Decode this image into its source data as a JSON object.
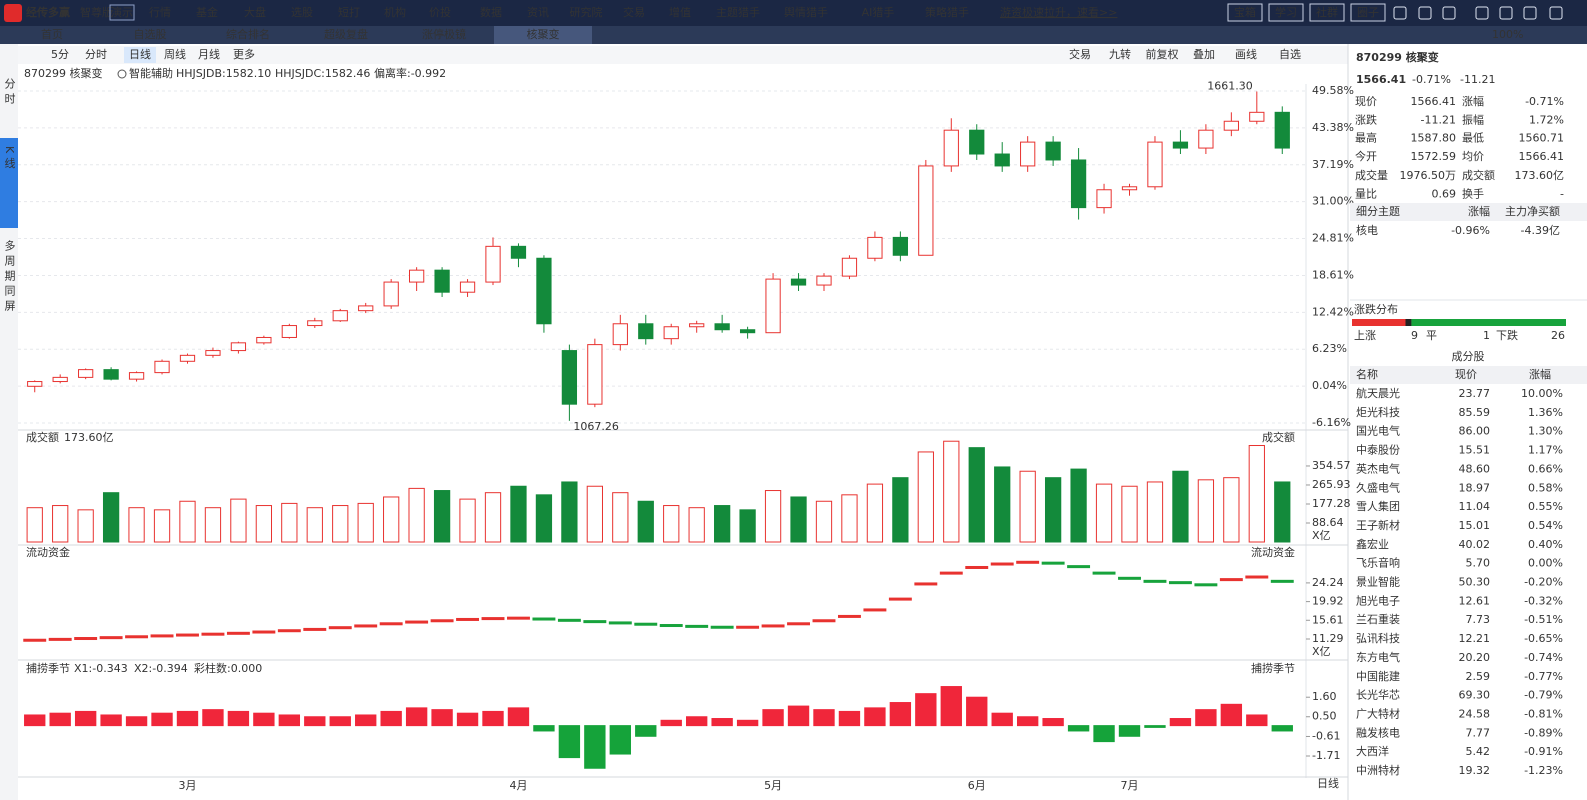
{
  "nav": {
    "logo": "经传多赢",
    "edition": "智尊版",
    "demo": "演示",
    "menu": [
      "行情",
      "基金",
      "大盘",
      "选股",
      "短打",
      "机构",
      "价投",
      "数据",
      "资讯",
      "研究院",
      "交易",
      "增值",
      "主题猎手",
      "舆情猎手",
      "AI猎手",
      "策略猎手"
    ],
    "promo": "游资极速拉升，速看>>",
    "buttons": [
      "宝箱",
      "学习",
      "社群",
      "圈子"
    ]
  },
  "tabs": {
    "items": [
      "首页",
      "自选股",
      "综合排名",
      "超级复盘",
      "涨停极镜",
      "核聚变"
    ],
    "zoom": "100%"
  },
  "side_tabs": [
    "分时",
    "K线",
    "多周期同屏"
  ],
  "toolbar": {
    "left": [
      "5分",
      "分时",
      "日线",
      "周线",
      "月线",
      "更多"
    ],
    "right": [
      "交易",
      "九转",
      "前复权",
      "叠加",
      "画线",
      "自选"
    ]
  },
  "period_label": "日线",
  "chart_data": [
    {
      "type": "candlestick",
      "title": "870299 核聚变",
      "assist": "智能辅助",
      "indicators": [
        "HHJSJDB:1582.10",
        "HHJSJDC:1582.46",
        "偏离率:-0.992"
      ],
      "high_label": "1661.30",
      "low_label": "1067.26",
      "categories": [
        null,
        null,
        null,
        null,
        null,
        null,
        "3月",
        null,
        null,
        null,
        null,
        null,
        null,
        null,
        null,
        null,
        null,
        null,
        null,
        "4月",
        null,
        null,
        null,
        null,
        null,
        null,
        null,
        null,
        null,
        "5月",
        null,
        null,
        null,
        null,
        null,
        null,
        null,
        "6月",
        null,
        null,
        null,
        null,
        null,
        "7月",
        null,
        null,
        null,
        null,
        null,
        null
      ],
      "ohlc": [
        [
          0,
          1,
          -1,
          0.8
        ],
        [
          0.8,
          2,
          0.5,
          1.5
        ],
        [
          1.5,
          3,
          1.2,
          2.8
        ],
        [
          2.8,
          3.2,
          1,
          1.2
        ],
        [
          1.2,
          2.5,
          0.8,
          2.3
        ],
        [
          2.3,
          4.5,
          2,
          4.2
        ],
        [
          4.2,
          5.5,
          3.8,
          5.2
        ],
        [
          5.2,
          6.5,
          4.8,
          6
        ],
        [
          6,
          7.5,
          5.5,
          7.3
        ],
        [
          7.3,
          8.5,
          7,
          8.2
        ],
        [
          8.2,
          10.5,
          8,
          10.2
        ],
        [
          10.2,
          11.5,
          9.8,
          11
        ],
        [
          11,
          13,
          10.8,
          12.7
        ],
        [
          12.7,
          14,
          12.3,
          13.5
        ],
        [
          13.5,
          18,
          13,
          17.5
        ],
        [
          17.5,
          20,
          16,
          19.5
        ],
        [
          19.5,
          20,
          15,
          15.8
        ],
        [
          15.8,
          18,
          15,
          17.5
        ],
        [
          17.5,
          25,
          17,
          23.5
        ],
        [
          23.5,
          24,
          20,
          21.5
        ],
        [
          21.5,
          22,
          9,
          10.5
        ],
        [
          6,
          7,
          -5.8,
          -3
        ],
        [
          -3,
          8,
          -3.5,
          7
        ],
        [
          7,
          12,
          6,
          10.5
        ],
        [
          10.5,
          12,
          7,
          8
        ],
        [
          8,
          10.5,
          7,
          10
        ],
        [
          10,
          11,
          9,
          10.5
        ],
        [
          10.5,
          12,
          9,
          9.5
        ],
        [
          9.5,
          10,
          8,
          9
        ],
        [
          9,
          19,
          9,
          18
        ],
        [
          18,
          19,
          16,
          17
        ],
        [
          17,
          19,
          16,
          18.5
        ],
        [
          18.5,
          22,
          18,
          21.5
        ],
        [
          21.5,
          26,
          21,
          25
        ],
        [
          25,
          26,
          21,
          22
        ],
        [
          22,
          38,
          22,
          37
        ],
        [
          37,
          45,
          36,
          43
        ],
        [
          43,
          44,
          38,
          39
        ],
        [
          39,
          41,
          36,
          37
        ],
        [
          37,
          42,
          36,
          41
        ],
        [
          41,
          42,
          37,
          38
        ],
        [
          38,
          40,
          28,
          30
        ],
        [
          30,
          34,
          29,
          33
        ],
        [
          33,
          34,
          32,
          33.5
        ],
        [
          33.5,
          42,
          33,
          41
        ],
        [
          41,
          43,
          39,
          40
        ],
        [
          40,
          44,
          39,
          43
        ],
        [
          43,
          46,
          42,
          44.5
        ],
        [
          44.5,
          49.5,
          44,
          46
        ],
        [
          46,
          47,
          39,
          40
        ]
      ],
      "ylim": [
        -6.16,
        49.58
      ],
      "yticks": [
        {
          "value": 49.58,
          "label": "49.58%"
        },
        {
          "value": 43.38,
          "label": "43.38%"
        },
        {
          "value": 37.19,
          "label": "37.19%"
        },
        {
          "value": 31.0,
          "label": "31.00%"
        },
        {
          "value": 24.81,
          "label": "24.81%"
        },
        {
          "value": 18.61,
          "label": "18.61%"
        },
        {
          "value": 12.42,
          "label": "12.42%"
        },
        {
          "value": 6.23,
          "label": "6.23%"
        },
        {
          "value": 0.04,
          "label": "0.04%"
        },
        {
          "value": -6.16,
          "label": "-6.16%"
        }
      ],
      "up_color": "#e8322f",
      "down_color": "#138a3b",
      "grid": true
    },
    {
      "type": "bar",
      "title": "成交额",
      "summary": "173.60亿",
      "right_title": "成交额",
      "unit": "X亿",
      "values": [
        160,
        170,
        150,
        230,
        160,
        150,
        190,
        160,
        200,
        170,
        180,
        160,
        170,
        180,
        210,
        250,
        240,
        200,
        230,
        260,
        220,
        280,
        260,
        230,
        190,
        170,
        160,
        170,
        150,
        240,
        210,
        190,
        220,
        270,
        300,
        420,
        470,
        440,
        350,
        330,
        300,
        340,
        270,
        260,
        280,
        330,
        290,
        300,
        450,
        280
      ],
      "ylim": [
        0,
        513
      ],
      "yticks": [
        354.57,
        265.93,
        177.28,
        88.64
      ]
    },
    {
      "type": "line",
      "title": "流动资金",
      "right_title": "流动资金",
      "unit": "X亿",
      "values": [
        11.0,
        11.2,
        11.4,
        11.6,
        11.8,
        12.0,
        12.2,
        12.4,
        12.6,
        12.9,
        13.2,
        13.5,
        13.9,
        14.3,
        14.8,
        15.2,
        15.5,
        15.8,
        16.0,
        16.1,
        15.9,
        15.6,
        15.3,
        15.0,
        14.7,
        14.4,
        14.2,
        14.0,
        14.0,
        14.3,
        14.8,
        15.5,
        16.5,
        18.0,
        20.5,
        24.0,
        26.5,
        27.8,
        28.6,
        29.0,
        28.8,
        28.0,
        26.5,
        25.3,
        24.6,
        24.3,
        23.8,
        25.0,
        25.6,
        24.6
      ],
      "ylim": [
        6.9,
        32.3
      ],
      "yticks": [
        24.24,
        19.92,
        15.61,
        11.29
      ]
    },
    {
      "type": "bar",
      "title": "捕捞季节",
      "indicators": [
        "X1:-0.343",
        "X2:-0.394",
        "彩柱数:0.000"
      ],
      "right_title": "捕捞季节",
      "values": [
        0.6,
        0.7,
        0.8,
        0.6,
        0.5,
        0.7,
        0.8,
        0.9,
        0.8,
        0.7,
        0.6,
        0.5,
        0.5,
        0.6,
        0.8,
        1.0,
        0.9,
        0.7,
        0.8,
        1.0,
        -0.3,
        -1.8,
        -2.4,
        -1.6,
        -0.6,
        0.3,
        0.5,
        0.4,
        0.3,
        0.9,
        1.1,
        0.9,
        0.8,
        1.0,
        1.3,
        1.8,
        2.2,
        1.6,
        0.7,
        0.5,
        0.4,
        -0.3,
        -0.9,
        -0.6,
        -0.1,
        0.4,
        0.9,
        1.2,
        0.6,
        -0.3
      ],
      "ylim": [
        -2.78,
        3.47
      ],
      "yticks": [
        {
          "value": 1.6,
          "label": "1.60"
        },
        {
          "value": 0.5,
          "label": "0.50"
        },
        -0.61,
        -1.71
      ]
    }
  ],
  "quote": {
    "title": "870299 核聚变",
    "price": "1566.41",
    "change_pct": "-0.71%",
    "change": "-11.21",
    "rows": [
      [
        "现价",
        "1566.41",
        "涨幅",
        "-0.71%"
      ],
      [
        "涨跌",
        "-11.21",
        "振幅",
        "1.72%"
      ],
      [
        "最高",
        "1587.80",
        "最低",
        "1560.71"
      ],
      [
        "今开",
        "1572.59",
        "均价",
        "1566.41"
      ],
      [
        "成交量",
        "1976.50万",
        "成交额",
        "173.60亿"
      ],
      [
        "量比",
        "0.69",
        "换手",
        "-"
      ]
    ],
    "theme": {
      "headers": [
        "细分主题",
        "涨幅",
        "主力净买额"
      ],
      "rows": [
        [
          "核电",
          "-0.96%",
          "-4.39亿"
        ]
      ]
    },
    "distribution": {
      "title": "涨跌分布",
      "up_label": "上涨",
      "up": 9,
      "flat_label": "平",
      "flat": 1,
      "down_label": "下跌",
      "down": 26
    },
    "components": {
      "title": "成分股",
      "headers": [
        "名称",
        "现价",
        "涨幅"
      ],
      "rows": [
        [
          "航天晨光",
          "23.77",
          "10.00%"
        ],
        [
          "炬光科技",
          "85.59",
          "1.36%"
        ],
        [
          "国光电气",
          "86.00",
          "1.30%"
        ],
        [
          "中泰股份",
          "15.51",
          "1.17%"
        ],
        [
          "英杰电气",
          "48.60",
          "0.66%"
        ],
        [
          "久盛电气",
          "18.97",
          "0.58%"
        ],
        [
          "雪人集团",
          "11.04",
          "0.55%"
        ],
        [
          "王子新材",
          "15.01",
          "0.54%"
        ],
        [
          "鑫宏业",
          "40.02",
          "0.40%"
        ],
        [
          "飞乐音响",
          "5.70",
          "0.00%"
        ],
        [
          "景业智能",
          "50.30",
          "-0.20%"
        ],
        [
          "旭光电子",
          "12.61",
          "-0.32%"
        ],
        [
          "兰石重装",
          "7.73",
          "-0.51%"
        ],
        [
          "弘讯科技",
          "12.21",
          "-0.65%"
        ],
        [
          "东方电气",
          "20.20",
          "-0.74%"
        ],
        [
          "中国能建",
          "2.59",
          "-0.77%"
        ],
        [
          "长光华芯",
          "69.30",
          "-0.79%"
        ],
        [
          "广大特材",
          "24.58",
          "-0.81%"
        ],
        [
          "融发核电",
          "7.77",
          "-0.89%"
        ],
        [
          "大西洋",
          "5.42",
          "-0.91%"
        ],
        [
          "中洲特材",
          "19.32",
          "-1.23%"
        ]
      ]
    }
  }
}
